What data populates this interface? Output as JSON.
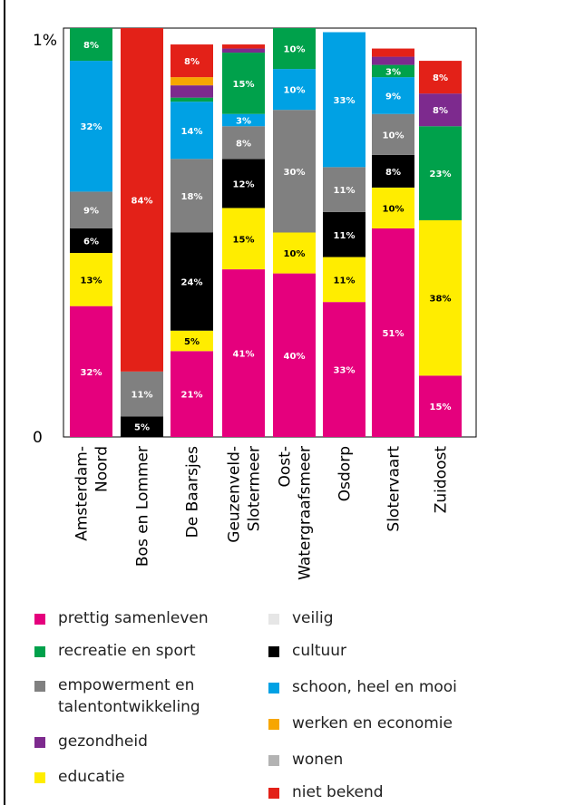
{
  "chart_data": {
    "type": "bar",
    "stacked": true,
    "y_tick_labels": [
      "0",
      "1%"
    ],
    "ylim": [
      0,
      100
    ],
    "categories": [
      "Amsterdam-Noord",
      "Bos en Lommer",
      "De Baarsjes",
      "Geuzenveld-Slotermeer",
      "Oost-Watergraafsmeer",
      "Osdorp",
      "Slotervaart",
      "Zuidoost"
    ],
    "category_lines": [
      [
        "Amsterdam-",
        "Noord"
      ],
      [
        "Bos en Lommer"
      ],
      [
        "De Baarsjes"
      ],
      [
        "Geuzenveld-",
        "Slotermeer"
      ],
      [
        "Oost-",
        "Watergraafsmeer"
      ],
      [
        "Osdorp"
      ],
      [
        "Slotervaart"
      ],
      [
        "Zuidoost"
      ]
    ],
    "series": [
      {
        "name": "prettig samenleven",
        "color": "#e5007d",
        "label_color": "#ffffff",
        "values": [
          32,
          0,
          21,
          41,
          40,
          33,
          51,
          15
        ]
      },
      {
        "name": "educatie",
        "color": "#ffed00",
        "label_color": "#000000",
        "values": [
          13,
          0,
          5,
          15,
          10,
          11,
          10,
          38
        ]
      },
      {
        "name": "cultuur",
        "color": "#000000",
        "label_color": "#ffffff",
        "values": [
          6,
          5,
          24,
          12,
          0,
          11,
          8,
          0
        ]
      },
      {
        "name": "empowerment en talentontwikkeling",
        "color": "#808080",
        "label_color": "#ffffff",
        "values": [
          9,
          11,
          18,
          8,
          30,
          11,
          10,
          0
        ]
      },
      {
        "name": "schoon, heel en mooi",
        "color": "#00a1e4",
        "label_color": "#ffffff",
        "values": [
          32,
          0,
          14,
          3,
          10,
          33,
          9,
          0
        ]
      },
      {
        "name": "recreatie en sport",
        "color": "#00a14b",
        "label_color": "#ffffff",
        "values": [
          8,
          0,
          1,
          15,
          10,
          0,
          3,
          23
        ]
      },
      {
        "name": "gezondheid",
        "color": "#7d2a8e",
        "label_color": "#ffffff",
        "values": [
          0,
          0,
          3,
          1,
          0,
          0,
          2,
          8
        ]
      },
      {
        "name": "werken en economie",
        "color": "#f7a600",
        "label_color": "#000000",
        "values": [
          0,
          0,
          2,
          0,
          0,
          0,
          0,
          0
        ]
      },
      {
        "name": "niet bekend",
        "color": "#e32118",
        "label_color": "#ffffff",
        "values": [
          0,
          84,
          8,
          1,
          0,
          0,
          2,
          8
        ]
      }
    ],
    "orange_block": {
      "series_color": "#f07030",
      "category": "Zuidoost",
      "value": 8
    },
    "label_segments_hidden": [
      "gezondheid",
      "werken en economie"
    ],
    "legend_placement": "bottom"
  },
  "legend": {
    "left": [
      {
        "label": "prettig samenleven",
        "color": "#e5007d"
      },
      {
        "label": "recreatie en sport",
        "color": "#00a14b"
      },
      {
        "label": "empowerment en",
        "label2": "talentontwikkeling",
        "color": "#808080"
      },
      {
        "label": "gezondheid",
        "color": "#7d2a8e"
      },
      {
        "label": "educatie",
        "color": "#ffed00"
      }
    ],
    "right": [
      {
        "label": "veilig",
        "color": "#e6e6e6"
      },
      {
        "label": "cultuur",
        "color": "#000000"
      },
      {
        "label": "schoon, heel en mooi",
        "color": "#00a1e4"
      },
      {
        "label": "werken en economie",
        "color": "#f7a600"
      },
      {
        "label": "wonen",
        "color": "#b3b3b3"
      },
      {
        "label": "niet bekend",
        "color": "#e32118"
      }
    ]
  }
}
